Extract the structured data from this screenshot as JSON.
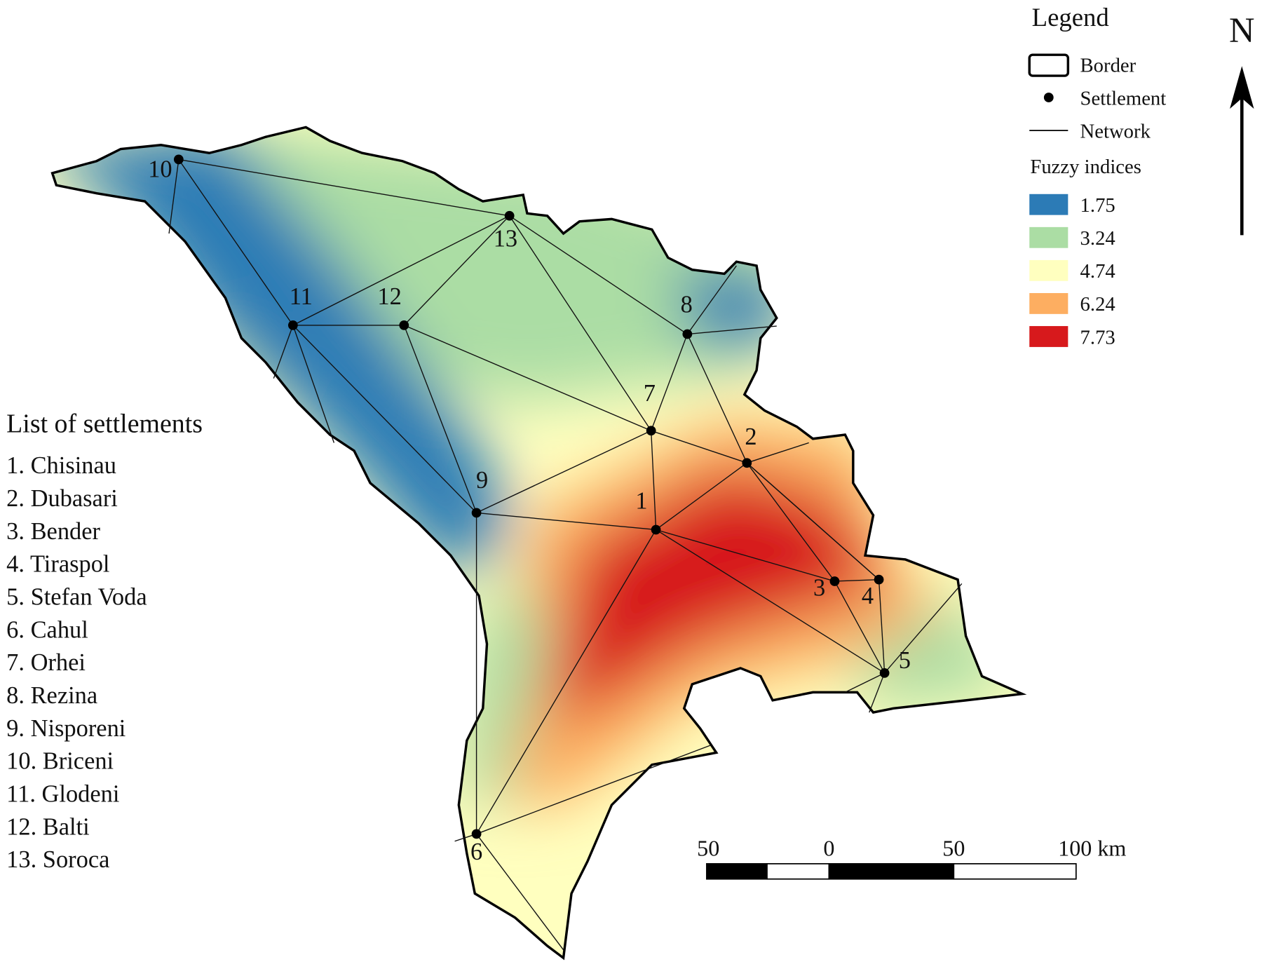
{
  "legend": {
    "title": "Legend",
    "items": [
      "Border",
      "Settlement",
      "Network"
    ],
    "fuzzy_title": "Fuzzy indices",
    "classes": [
      {
        "label": 1.75,
        "color": "#2c7bb6"
      },
      {
        "label": 3.24,
        "color": "#abdda4"
      },
      {
        "label": 4.74,
        "color": "#ffffbf"
      },
      {
        "label": 6.24,
        "color": "#fdae61"
      },
      {
        "label": 7.73,
        "color": "#d7191c"
      }
    ]
  },
  "north": "N",
  "settlement_list": {
    "title": "List of settlements",
    "items": [
      "1. Chisinau",
      "2. Dubasari",
      "3. Bender",
      "4. Tiraspol",
      "5. Stefan Voda",
      "6. Cahul",
      "7. Orhei",
      "8. Rezina",
      "9. Nisporeni",
      "10. Briceni",
      "11. Glodeni",
      "12. Balti",
      "13. Soroca"
    ]
  },
  "map_labels": [
    "1",
    "2",
    "3",
    "4",
    "5",
    "6",
    "7",
    "8",
    "9",
    "10",
    "11",
    "12",
    "13"
  ],
  "scale_bar": [
    "50",
    "0",
    "50",
    "100 km"
  ]
}
